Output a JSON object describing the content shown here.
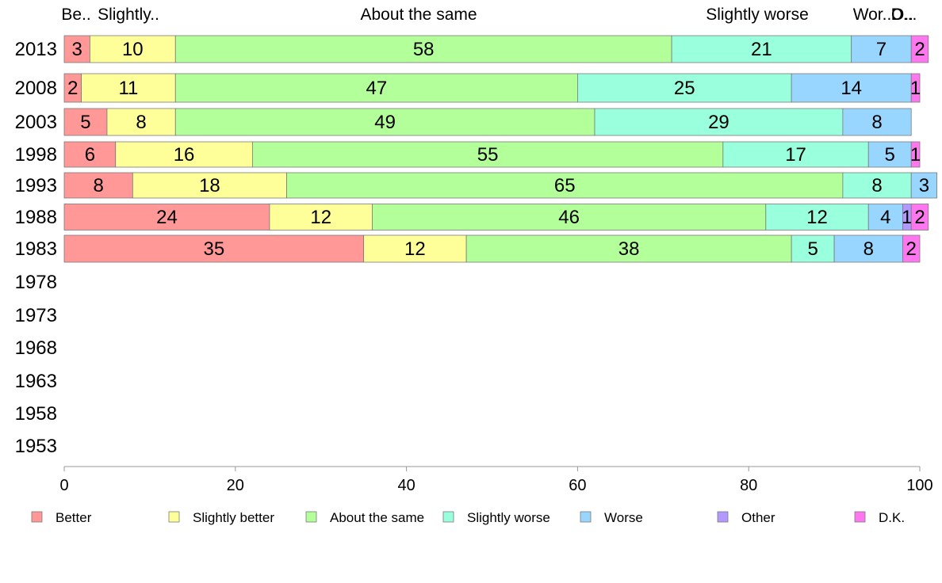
{
  "chart_data": {
    "type": "bar",
    "orientation": "horizontal",
    "stacked": true,
    "categories": [
      "2013",
      "2008",
      "2003",
      "1998",
      "1993",
      "1988",
      "1983",
      "1978",
      "1973",
      "1968",
      "1963",
      "1958",
      "1953"
    ],
    "series": [
      {
        "name": "Better",
        "color": "#ff9896",
        "values": [
          3,
          2,
          5,
          6,
          8,
          24,
          35,
          null,
          null,
          null,
          null,
          null,
          null
        ]
      },
      {
        "name": "Slightly better",
        "color": "#ffff99",
        "values": [
          10,
          11,
          8,
          16,
          18,
          12,
          12,
          null,
          null,
          null,
          null,
          null,
          null
        ]
      },
      {
        "name": "About the same",
        "color": "#b3ff99",
        "values": [
          58,
          47,
          49,
          55,
          65,
          46,
          38,
          null,
          null,
          null,
          null,
          null,
          null
        ]
      },
      {
        "name": "Slightly worse",
        "color": "#99ffdd",
        "values": [
          21,
          25,
          29,
          17,
          8,
          12,
          5,
          null,
          null,
          null,
          null,
          null,
          null
        ]
      },
      {
        "name": "Worse",
        "color": "#99d6ff",
        "values": [
          7,
          14,
          8,
          5,
          3,
          4,
          8,
          null,
          null,
          null,
          null,
          null,
          null
        ]
      },
      {
        "name": "Other",
        "color": "#b399ff",
        "values": [
          0,
          0,
          0,
          0,
          0,
          1,
          0,
          null,
          null,
          null,
          null,
          null,
          null
        ]
      },
      {
        "name": "D.K.",
        "color": "#ff77ee",
        "values": [
          2,
          1,
          0,
          1,
          0,
          2,
          2,
          null,
          null,
          null,
          null,
          null,
          null
        ]
      }
    ],
    "top_labels": [
      "Be..",
      "Slightly..",
      "About the same",
      "Slightly worse",
      "Wor..",
      "O..",
      "D..."
    ],
    "xlim": [
      0,
      100
    ],
    "xticks": [
      0,
      20,
      40,
      60,
      80,
      100
    ],
    "legend_position": "bottom",
    "grid": false,
    "title": "",
    "xlabel": "",
    "ylabel": ""
  }
}
